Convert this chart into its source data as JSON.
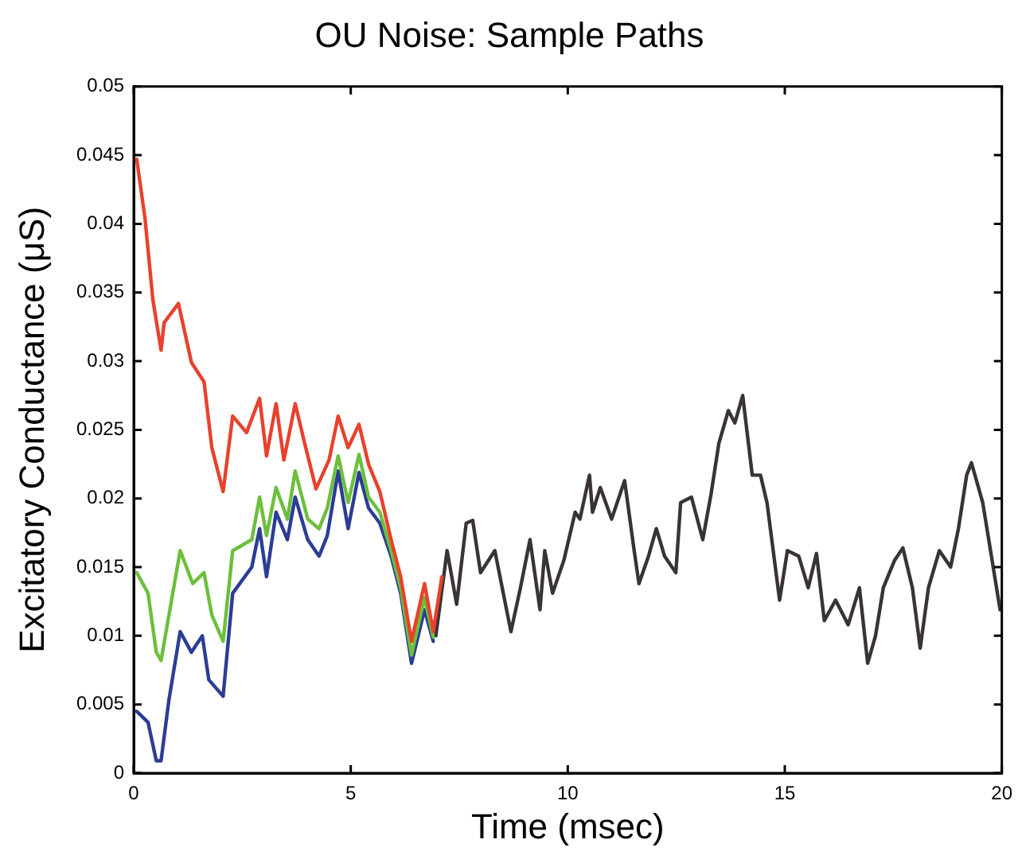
{
  "chart_data": {
    "type": "line",
    "title": "OU Noise: Sample Paths",
    "xlabel": "Time (msec)",
    "ylabel": "Excitatory Conductance (μS)",
    "xlim": [
      0,
      20
    ],
    "xticks": [
      0,
      5,
      10,
      15,
      20
    ],
    "ylim": [
      0,
      0.05
    ],
    "yticks": [
      0,
      0.005,
      0.01,
      0.015,
      0.02,
      0.025,
      0.03,
      0.035,
      0.04,
      0.045,
      0.05
    ],
    "grid": false,
    "legend": false,
    "marker": "none",
    "line_style": "solid",
    "series": [
      {
        "color": "#e8412c",
        "x": [
          0.07,
          0.26,
          0.44,
          0.63,
          0.7,
          1.03,
          1.33,
          1.62,
          1.8,
          2.06,
          2.28,
          2.6,
          2.9,
          3.06,
          3.28,
          3.46,
          3.72,
          3.94,
          4.2,
          4.5,
          4.71,
          4.94,
          5.19,
          5.41,
          5.67,
          5.93,
          6.15,
          6.4,
          6.7,
          6.9,
          7.1
        ],
        "values": [
          0.0447,
          0.0404,
          0.0345,
          0.0308,
          0.0328,
          0.0342,
          0.0299,
          0.0285,
          0.0237,
          0.0205,
          0.026,
          0.0248,
          0.0273,
          0.0231,
          0.0269,
          0.0228,
          0.0269,
          0.024,
          0.0207,
          0.0228,
          0.026,
          0.0237,
          0.0254,
          0.0225,
          0.0205,
          0.017,
          0.0143,
          0.0096,
          0.0138,
          0.0103,
          0.0143
        ]
      },
      {
        "color": "#6cbf3c",
        "x": [
          0.07,
          0.33,
          0.52,
          0.63,
          1.07,
          1.36,
          1.62,
          1.8,
          2.06,
          2.28,
          2.72,
          2.9,
          3.06,
          3.28,
          3.54,
          3.72,
          4.01,
          4.27,
          4.46,
          4.71,
          4.94,
          5.19,
          5.41,
          5.67,
          5.93,
          6.15,
          6.4,
          6.7,
          6.9
        ],
        "values": [
          0.0146,
          0.0131,
          0.0088,
          0.0082,
          0.0162,
          0.0138,
          0.0146,
          0.0115,
          0.0096,
          0.0162,
          0.017,
          0.0201,
          0.0173,
          0.0208,
          0.0185,
          0.022,
          0.0185,
          0.0178,
          0.0193,
          0.0231,
          0.0197,
          0.0232,
          0.0201,
          0.019,
          0.0162,
          0.0135,
          0.0086,
          0.0128,
          0.0099
        ]
      },
      {
        "color": "#2c3d95",
        "x": [
          0.07,
          0.33,
          0.52,
          0.63,
          0.81,
          1.07,
          1.33,
          1.58,
          1.73,
          2.06,
          2.28,
          2.72,
          2.9,
          3.06,
          3.28,
          3.54,
          3.72,
          4.01,
          4.27,
          4.46,
          4.71,
          4.94,
          5.19,
          5.41,
          5.67,
          5.93,
          6.15,
          6.4,
          6.7,
          6.9
        ],
        "values": [
          0.0045,
          0.0037,
          0.0009,
          0.0009,
          0.0053,
          0.0103,
          0.0088,
          0.01,
          0.0068,
          0.0056,
          0.0131,
          0.015,
          0.0178,
          0.0143,
          0.019,
          0.017,
          0.0201,
          0.017,
          0.0158,
          0.0173,
          0.022,
          0.0178,
          0.0219,
          0.0193,
          0.0182,
          0.0158,
          0.0131,
          0.008,
          0.0119,
          0.0096
        ]
      },
      {
        "color": "#3a3335",
        "x": [
          6.96,
          7.22,
          7.44,
          7.66,
          7.81,
          7.99,
          8.32,
          8.69,
          8.91,
          9.13,
          9.36,
          9.47,
          9.65,
          9.91,
          10.17,
          10.28,
          10.5,
          10.57,
          10.75,
          11.01,
          11.31,
          11.53,
          11.64,
          11.86,
          12.04,
          12.23,
          12.49,
          12.6,
          12.85,
          13.11,
          13.3,
          13.48,
          13.7,
          13.85,
          14.03,
          14.25,
          14.44,
          14.59,
          14.88,
          15.06,
          15.32,
          15.54,
          15.73,
          15.91,
          16.17,
          16.46,
          16.72,
          16.91,
          17.09,
          17.27,
          17.53,
          17.72,
          17.94,
          18.12,
          18.31,
          18.56,
          18.82,
          19.0,
          19.19,
          19.3,
          19.56,
          19.74,
          19.96
        ],
        "values": [
          0.01,
          0.0162,
          0.0123,
          0.0182,
          0.0184,
          0.0146,
          0.0162,
          0.0103,
          0.0135,
          0.017,
          0.0119,
          0.0162,
          0.0131,
          0.0155,
          0.019,
          0.0185,
          0.0217,
          0.019,
          0.0208,
          0.0185,
          0.0213,
          0.0162,
          0.0138,
          0.0158,
          0.0178,
          0.0158,
          0.0146,
          0.0197,
          0.0201,
          0.017,
          0.0203,
          0.024,
          0.0264,
          0.0255,
          0.0275,
          0.0217,
          0.0217,
          0.0197,
          0.0126,
          0.0162,
          0.0158,
          0.0135,
          0.016,
          0.0111,
          0.0126,
          0.0108,
          0.0135,
          0.008,
          0.01,
          0.0135,
          0.0155,
          0.0164,
          0.0135,
          0.0091,
          0.0135,
          0.0162,
          0.015,
          0.0178,
          0.0217,
          0.0226,
          0.0197,
          0.0162,
          0.0119
        ]
      }
    ]
  }
}
